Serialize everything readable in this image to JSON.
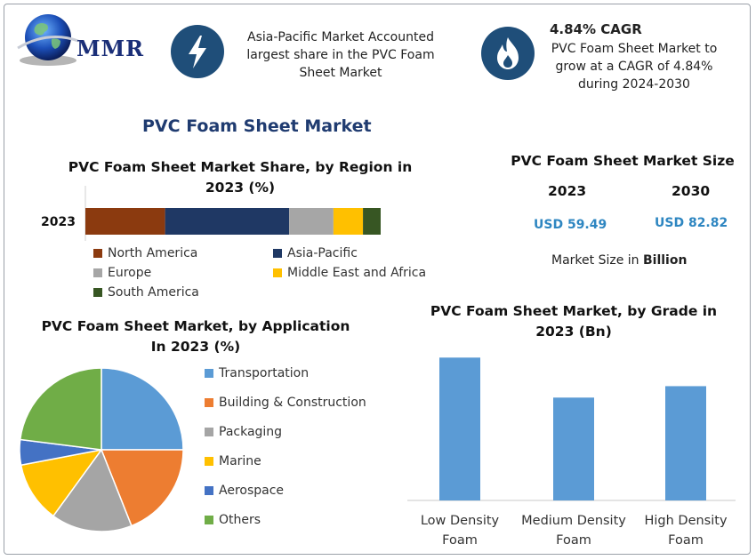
{
  "header": {
    "logo_text": "MMR",
    "highlight1": {
      "icon": "lightning-icon",
      "lines": [
        "Asia-Pacific Market Accounted",
        "largest share in the PVC Foam",
        "Sheet Market"
      ]
    },
    "highlight2": {
      "icon": "flame-icon",
      "title": "4.84% CAGR",
      "lines": [
        "PVC Foam Sheet Market to",
        "grow at a CAGR of 4.84%",
        "during 2024-2030"
      ]
    }
  },
  "main_title": "PVC Foam Sheet Market",
  "market_size": {
    "title": "PVC Foam Sheet Market Size",
    "year1": "2023",
    "year2": "2030",
    "value1": "USD 59.49",
    "value2": "USD 82.82",
    "unit_prefix": "Market Size in ",
    "unit_bold": "Billion"
  },
  "chart_data": [
    {
      "type": "bar",
      "orientation": "horizontal-stacked",
      "title": "PVC Foam Sheet Market Share, by Region in 2023 (%)",
      "title_lines": [
        "PVC Foam Sheet Market Share, by Region in",
        "2023 (%)"
      ],
      "categories": [
        "2023"
      ],
      "series": [
        {
          "name": "North America",
          "values": [
            27
          ],
          "color": "#8b3a0f"
        },
        {
          "name": "Asia-Pacific",
          "values": [
            42
          ],
          "color": "#1f3864"
        },
        {
          "name": "Europe",
          "values": [
            15
          ],
          "color": "#a6a6a6"
        },
        {
          "name": "Middle East and Africa",
          "values": [
            10
          ],
          "color": "#ffc000"
        },
        {
          "name": "South America",
          "values": [
            6
          ],
          "color": "#375623"
        }
      ],
      "legend": "bottom"
    },
    {
      "type": "pie",
      "title": "PVC Foam Sheet Market, by Application In 2023 (%)",
      "title_lines": [
        "PVC Foam Sheet Market, by Application",
        "In 2023 (%)"
      ],
      "slices": [
        {
          "name": "Transportation",
          "value": 25,
          "color": "#5b9bd5"
        },
        {
          "name": "Building & Construction",
          "value": 19,
          "color": "#ed7d31"
        },
        {
          "name": "Packaging",
          "value": 16,
          "color": "#a5a5a5"
        },
        {
          "name": "Marine",
          "value": 12,
          "color": "#ffc000"
        },
        {
          "name": "Aerospace",
          "value": 5,
          "color": "#4472c4"
        },
        {
          "name": "Others",
          "value": 23,
          "color": "#70ad47"
        }
      ],
      "legend": "right"
    },
    {
      "type": "bar",
      "title": "PVC Foam Sheet Market, by Grade in 2023 (Bn)",
      "title_lines": [
        "PVC Foam Sheet Market, by Grade in",
        "2023 (Bn)"
      ],
      "categories": [
        [
          "Low Density",
          "Foam"
        ],
        [
          "Medium Density",
          "Foam"
        ],
        [
          "High Density",
          "Foam"
        ]
      ],
      "values": [
        25,
        18,
        20
      ],
      "color": "#5b9bd5",
      "ylim": [
        0,
        28
      ]
    }
  ]
}
